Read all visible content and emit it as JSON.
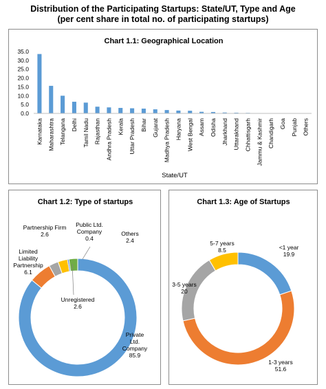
{
  "title_line1": "Distribution of the Participating Startups: State/UT, Type and Age",
  "title_line2": "(per cent share in total no. of participating startups)",
  "chart_data": [
    {
      "type": "bar",
      "title": "Chart 1.1: Geographical Location",
      "xlabel": "State/UT",
      "ylabel": "",
      "ylim": [
        0,
        35
      ],
      "yticks": [
        "0.0",
        "5.0",
        "10.0",
        "15.0",
        "20.0",
        "25.0",
        "30.0",
        "35.0"
      ],
      "grid": false,
      "color": "#5b9bd5",
      "categories": [
        "Karnataka",
        "Maharashtra",
        "Telangana",
        "Delhi",
        "Tamil Nadu",
        "Rajasthan",
        "Andhra Pradesh",
        "Kerala",
        "Uttar Pradesh",
        "Bihar",
        "Gujarat",
        "Madhya Pradesh",
        "Haryana",
        "West Bengal",
        "Assam",
        "Odisha",
        "Jharkhand",
        "Uttarakhand",
        "Chhattisgarh",
        "Jammu & Kashmir",
        "Chandigarh",
        "Goa",
        "Punjab",
        "Others"
      ],
      "values": [
        33.6,
        15.6,
        10.0,
        6.6,
        6.1,
        3.8,
        3.4,
        3.1,
        2.9,
        2.7,
        2.3,
        1.9,
        1.6,
        1.5,
        0.9,
        0.8,
        0.5,
        0.4,
        0.3,
        0.2,
        0.1,
        0.1,
        0.1,
        0.1
      ]
    },
    {
      "type": "pie",
      "title": "Chart 1.2: Type of startups",
      "slices": [
        {
          "label": "Private Ltd. Company",
          "value": 85.9,
          "color": "#5b9bd5"
        },
        {
          "label": "Limited Liability Partnership",
          "value": 6.1,
          "color": "#ed7d31"
        },
        {
          "label": "Partnership Firm",
          "value": 2.6,
          "color": "#a5a5a5"
        },
        {
          "label": "Unregistered",
          "value": 2.6,
          "color": "#ffc000"
        },
        {
          "label": "Public Ltd. Company",
          "value": 0.4,
          "color": "#4472c4"
        },
        {
          "label": "Others",
          "value": 2.4,
          "color": "#70ad47"
        }
      ]
    },
    {
      "type": "pie",
      "title": "Chart 1.3: Age of Startups",
      "slices": [
        {
          "label": "<1 year",
          "value": 19.9,
          "color": "#5b9bd5"
        },
        {
          "label": "1-3 years",
          "value": 51.6,
          "color": "#ed7d31"
        },
        {
          "label": "3-5 years",
          "value": 20.0,
          "color": "#a5a5a5"
        },
        {
          "label": "5-7 years",
          "value": 8.5,
          "color": "#ffc000"
        }
      ]
    }
  ]
}
